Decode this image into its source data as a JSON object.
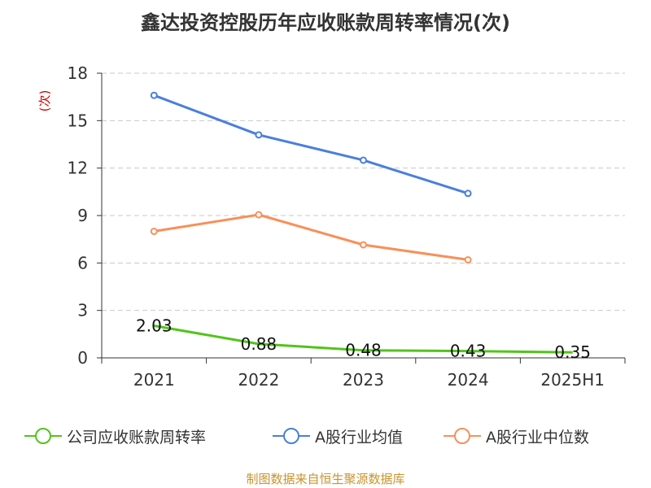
{
  "title": "鑫达投资控股历年应收账款周转率情况(次)",
  "source": "制图数据来自恒生聚源数据库",
  "chart_data": {
    "type": "line",
    "title": "鑫达投资控股历年应收账款周转率情况(次)",
    "ylabel": "(次)",
    "ylabel_color": "#d40000",
    "categories": [
      "2021",
      "2022",
      "2023",
      "2024",
      "2025H1"
    ],
    "ylim": [
      0,
      18
    ],
    "yticks": [
      "0",
      "3",
      "6",
      "9",
      "12",
      "15",
      "18"
    ],
    "grid": true,
    "legend_position": "bottom",
    "series": [
      {
        "name": "公司应收账款周转率",
        "color": "#52c41a",
        "values": [
          2.03,
          0.88,
          0.48,
          0.43,
          0.35
        ],
        "labels": [
          "2.03",
          "0.88",
          "0.48",
          "0.43",
          "0.35"
        ],
        "markers": false
      },
      {
        "name": "A股行业均值",
        "color": "#4a7fdc",
        "values": [
          16.6,
          14.1,
          12.5,
          10.4,
          null
        ],
        "markers": true
      },
      {
        "name": "A股行业中位数",
        "color": "#f79059",
        "values": [
          8.0,
          9.05,
          7.15,
          6.2,
          null
        ],
        "markers": true
      }
    ]
  }
}
